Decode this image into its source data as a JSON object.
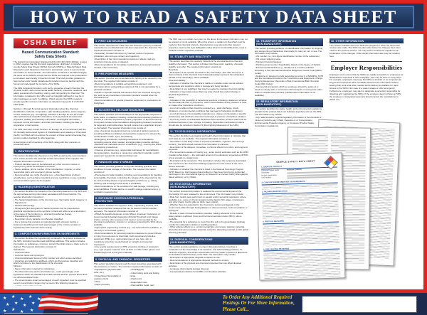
{
  "poster": {
    "title": "HOW TO READ A SAFETY DATA SHEET"
  },
  "colors": {
    "accent_red": "#e0241f",
    "banner_navy": "#22365c",
    "section_navy": "#1b3055",
    "footer_navy": "#1d2c4e",
    "footer_yellow": "#f3d017"
  },
  "osha_brief": {
    "label": "OSHA BRIEF",
    "subtitle": "Hazard Communication Standard:\nSafety Data Sheets",
    "intro": [
      "The Hazard Communication Standard (HCS) (29 CFR 1910.1200(g)), revised in 2012, requires that the chemical manufacturer, distributor, or importer provide Safety Data Sheets (SDSs) (formerly MSDSs or Material Safety Data Sheets) for each hazardous chemical to downstream users to communicate information on these hazards. The information contained in the SDS is largely the same as the MSDS, except now the SDSs are required to be presented in a consistent user-friendly, 16-section format. This brief provides guidance to help workers who handle hazardous chemicals to become familiar with the format and understand the contents of the SDSs.",
      "The SDS includes information such as the properties of each chemical; the physical, health, and environmental health hazards; protective measures; and safety precautions for handling, storing, and transporting the chemical. The information contained in the SDS must be in English (although it may be in other languages as well). In addition, OSHA requires that SDS preparers provide specific minimum information as detailed in Appendix D of 29 CFR 1910.1200.",
      "Sections 1 through 8 contain general information about the chemical, identification, hazards, composition, safe handling practices, and emergency control measures (e.g., fire fighting). Sections 9 through 11 and 16 contain other technical and scientific information, such as physical and chemical properties, stability and reactivity information, toxicological information, exposure control information, and other information including the date of preparation or last revision.",
      "The SDS must also contain Sections 12 through 15, to be consistent with the UN Globally Harmonized System of Classification and Labeling of Chemicals (GHS), but OSHA will not enforce the content of these sections because they concern matters handled by other agencies.",
      "A description of all 16 sections of the SDS, along with their contents, is presented below:"
    ]
  },
  "sections": [
    {
      "t": "1.  IDENTIFICATION",
      "b": "This section identifies the chemical on the SDS as well as the recommended uses. It also provides the essential contact information of the supplier. The required information consists of:\n• Product identifier used on the label and any other common names or synonyms by which the substance is known.\n• Name, address, phone number of the manufacturer, importer, or other responsible party, and emergency phone number.\n• Recommended use of the chemical (e.g., a brief description of what it actually does, such as flame retardant) and any restrictions on use, including recommendations given by the supplier."
    },
    {
      "t": "2.  HAZARD(S) IDENTIFICATION",
      "b": "This section identifies the hazards of the chemical presented on the SDS and the appropriate warning information associated with those hazards. The required information consists of:\n• The hazard classification of the chemical (e.g., flammable liquid, category 1).\n• Signal word.\n• Hazard statement(s).\n• Pictograms (the pictograms or hazard symbols may be presented as graphical reproductions of the symbols in black and white or as a description of the name of the symbol (e.g., skull and crossbones, flame).\n• Precautionary statement(s).\n• Description of any hazards not otherwise classified.\n• For a mixture that contains an ingredient(s) with unknown toxicity, a statement describing how much (percentage) of the mixture consists of ingredient(s) with unknown acute toxicity."
    },
    {
      "t": "3.  COMPOSITION/INFORMATION ON INGREDIENTS",
      "b": "This section identifies the ingredient(s) contained in the product indicated on the SDS, including impurities and stabilizing additives. This section includes information on substances, mixtures, and all chemicals where a trade secret is claimed. The required information consists of:\nSubstances\n• Chemical name.\n• Common name and synonyms.\n• Chemical Abstracts Service (CAS) number and other unique identifiers.\n• Impurities and stabilizing additives, which are themselves classified and which contribute to the classification of the chemical.\nMixtures\n• Same information required for substances.\n• The chemical name and concentration (i.e., exact percentage) of all ingredients which are classified as health hazards and are present above their cut-off/concentration limits.\n• The concentration (exact percentages) of each ingredient must be specified except concentration ranges may be used in the following situations:\n– A trade secret claim is made,\n– There is batch-to-batch variation, or\n– The SDS is used for a group of substantially similar mixtures.\nChemicals where a trade secret is claimed\n• A statement that the specific chemical identity and/or exact percentage (concentration) of composition has been withheld as a trade secret is required."
    },
    {
      "t": "4.  FIRST AID MEASURES",
      "b": "This section describes the initial care that should be given by untrained responders to an individual who has been exposed to the chemical. The required information consists of:\n• Necessary first-aid instructions by relevant routes of exposure (inhalation, skin and eye contact, and ingestion).\n• Description of the most important symptoms or effects, and any symptoms that are acute or delayed.\n• Recommendations for immediate medical care and special treatment needed, when necessary."
    },
    {
      "t": "5.  FIRE-FIGHTING MEASURES",
      "b": "This section provides recommendations for fighting a fire caused by the chemical. The required information consists of:\n• Recommendations of suitable extinguishing equipment, and information about extinguishing equipment that is not appropriate for a particular situation.\n• Advice on specific hazards that develop from the chemical during the fire, such as any hazardous combustion products created when the chemical burns.\n• Recommendations on special protective equipment or precautions for firefighters."
    },
    {
      "t": "6.  ACCIDENTAL RELEASE MEASURES",
      "b": "This section provides recommendations on the appropriate response to spills, leaks, or releases, including containment and cleanup practices to prevent or minimize exposure to people, properties, or the environment. It may also include recommendations distinguishing between responses for large and small spills where the spill volume has a significant impact on the hazard. The required information may consist of:\n• Use of personal precautions (such as removal of ignition sources or providing sufficient ventilation) and protective equipment to prevent the contamination of skin, eyes, and clothing.\n• Emergency procedures, including instructions for evacuations, consulting experts when needed, and appropriate protective clothing.\n• Methods and materials used for containment (e.g., covering the drains and capping procedures).\n• Cleanup procedures (e.g., appropriate techniques for neutralization, decontamination, cleaning or vacuuming; adsorbent materials; and/or equipment required for containment/clean up)."
    },
    {
      "t": "7.  HANDLING AND STORAGE",
      "b": "This section provides guidance on the safe handling practices and conditions for safe storage of chemicals. The required information consists of:\n• Precautions for safe handling, including recommendations for handling incompatible chemicals, minimizing the release of the chemical into the air, and providing advice on general hygiene practices (e.g., eating, drinking, and smoking in work areas is prohibited).\n• Recommendations on the conditions for safe storage, including any incompatibilities. Provide advice on specific storage requirements (e.g., ventilation requirements)."
    },
    {
      "t": "8.  EXPOSURE CONTROLS/PERSONAL PROTECTION",
      "b": "This section indicates the exposure limits, engineering controls, and personal protective measures that can be used to minimize worker exposure. The required information consists of:\n• OSHA Permissible Exposure Limits (PELs), American Conference of Governmental Industrial Hygienists (ACGIH) Threshold Limit Values (TLVs), and any other exposure limit used or recommended by the chemical manufacturer, importer, or employer preparing the SDS, where available.\n• Appropriate engineering controls (e.g., use local exhaust ventilation, or use only in an enclosed system).\n• Recommendations for personal protective measures to prevent illness or injury from exposure to chemicals, such as personal protective equipment (PPE) (e.g., appropriate types of eye, face, skin or respiratory protection needed based on hazards and potential exposures).\n• Any special requirements for PPE, protective clothing or respirators (e.g., type of glove material, such as PVC or nitrile rubber gloves; and breakthrough time of the glove material)."
    },
    {
      "t": "9.  PHYSICAL AND CHEMICAL PROPERTIES",
      "b": "This section identifies physical and chemical properties associated with the substance or mixture. The minimum required information consists of:"
    },
    {
      "t": "10.  STABILITY AND REACTIVITY",
      "b": "This section describes the reactivity hazards of the chemical and the chemical stability information. This section is broken into three parts: reactivity, chemical stability, and other. The required information consists of:\nReactivity\n• Description of the specific test data for the chemical(s). This data can be for a class or family of the chemical if such data adequately represent the anticipated hazard of the chemical(s), where available.\nChemical stability\n• Indication of whether the chemical is stable or unstable under normal ambient temperature and conditions while in storage and being handled.\n• Description of any stabilizers that may be needed to maintain chemical stability.\n• Indication of any safety issues that may arise should the product change in physical appearance.\nOther\n• Indication of the possibility of hazardous reactions, including a statement whether the chemical will react or polymerize, which could release excess pressure or heat, or create other hazardous conditions.\n• List of all conditions that should be avoided (e.g., static discharge, shock, vibrations, or environmental conditions that may lead to hazardous conditions).\n• List of all classes of incompatible materials (e.g., classes of chemicals or specific substances) with which the chemical could react to produce a hazardous situation.\n• List of any known or anticipated hazardous decomposition products that could be produced because of use, storage, or heating. (Hazardous combustion products should also be included in Section 5 (Fire-Fighting Measures) of the SDS.)"
    },
    {
      "t": "11.  TOXICOLOGICAL INFORMATION",
      "b": "This section identifies toxicological and health effects information or indicates that such data are not available. The required information consists of:\n• Information on the likely routes of exposure (inhalation, ingestion, skin and eye contact). The SDS should indicate if the information is unknown.\n• Description of the delayed, immediate, or chronic effects from short- and long-term exposure.\n• The numerical measures of toxicity (e.g., acute toxicity estimates such as the LD50 (median lethal dose)) — the estimated amount (of a substance) expected to kill 50% of test animals in a single dose.\n• Description of the symptoms. This description includes the symptoms associated with exposure to the chemical including symptoms from the lowest to the most severe exposure.\n• Indication of whether the chemical is listed in the National Toxicology Program (NTP) Report on Carcinogens (latest edition) or has been found to be a potential carcinogen in the International Agency for Research on Cancer (IARC) Monographs (latest editions), or by OSHA."
    },
    {
      "t": "12.  ECOLOGICAL INFORMATION\n(NON-MANDATORY)",
      "b": "This section provides information to evaluate the environmental impact of the chemical(s) if it were released to the environment. The information may include:\n• Data from toxicity tests performed on aquatic and/or terrestrial organisms, where available (e.g., acute or chronic aquatic toxicity data for fish, algae, crustaceans, and other plants; toxicity data on birds, bees, plants).\n• Whether there is a potential for the chemical to persist and degrade in the environment either through biodegradation or other processes, such as oxidation or hydrolysis.\n• Results of tests of bioaccumulation potential, making reference to the octanol-water partition coefficient (Kow) and the bioconcentration factor (BCF), where available.\n• The potential for a substance to move from the soil to the groundwater (indicate results from adsorption studies or leaching studies).\n• Other adverse effects (e.g., environmental fate, ozone layer depletion potential, photochemical ozone creation potential, endocrine disrupting potential, and/or global warming potential)."
    },
    {
      "t": "13.  DISPOSAL CONSIDERATIONS\n(NON-MANDATORY)",
      "b": "This section provides guidance on proper disposal practices, recycling or reclamation of the chemical(s) or its container, and safe handling practices. To minimize exposure, this section should also refer the reader to Section 8 (Exposure Controls/Personal Protection) of the SDS. The information may include:\n• Description of appropriate disposal containers to use.\n• Recommendations of appropriate disposal methods to employ.\n• Description of the physical and chemical properties that may affect disposal activities.\n• Language discouraging sewage disposal.\n• Any special precautions for landfills or incineration activities."
    },
    {
      "t": "14.  TRANSPORT INFORMATION\n(NON-MANDATORY)",
      "b": "This section provides guidance on classification information for shipping and transporting of hazardous chemical(s) by road, air, rail, or sea. The information may include:\n• UN number (i.e., four-figure identification number of the substance).\n• UN proper shipping name.\n• Transport hazard class(es).\n• Packing group number, if applicable, based on the degree of hazard.\n• Environmental hazards (e.g., identify if it is a marine pollutant according to the International Maritime Dangerous Goods Code (IMDG Code)).\n• Guidance on transport in bulk (according to Annex II of MARPOL 73/78 and the International Code for the Construction and Equipment of Ships Carrying Dangerous Chemicals in Bulk (International Bulk Chemical Code) (IBC Code)).\n• Any special precautions which an employee should be aware of or needs to comply with, in connection with transport or conveyance either within or outside their premises (indicate when information is not available)."
    },
    {
      "t": "15.  REGULATORY INFORMATION\n(NON-MANDATORY)",
      "b": "This section identifies the safety, health, and environmental regulations specific for the product that is not indicated anywhere else on the SDS. The information may include:\n• Any national and/or regional regulatory information of the chemical or mixtures (including any OSHA, Department of Transportation, Environmental Protection Agency, or Consumer Product Safety Commission regulations)."
    },
    {
      "t": "16.  OTHER INFORMATION",
      "b": "This section indicates when the SDS was prepared or when the last known revision was made. The SDS may also state where the changes have been made to the previous version. You may wish to contact the supplier for an explanation of the changes. Other useful information also may be included here."
    }
  ],
  "section9_properties": [
    "Appearance (physical state, color, etc.)",
    "Upper/lower flammability or explosive limits",
    "Odor",
    "Vapor pressure",
    "Odor threshold",
    "Vapor density",
    "pH",
    "Relative density",
    "Melting point/freezing point",
    "Solubility(ies)",
    "Initial boiling point and boiling range",
    "Flash point",
    "Evaporation rate",
    "Flammability (solid, gas)",
    "Partition coefficient: n-octanol/water",
    "Auto-ignition temperature",
    "Decomposition temperature",
    "Viscosity"
  ],
  "section9_note": "The SDS may not contain every item on the above list because information may not be relevant or is not available. When this occurs, a notation to that effect must be made for that chemical property. Manufacturers may also add other relevant properties, such as the dust deflagration index (Kst) for combustible dusts, used to evaluate a dust's explosive potential.",
  "employer": {
    "title": "Employer Responsibilities",
    "body": "Employers must ensure that the SDSs are readily accessible to employees for all hazardous chemicals in their workplace. This may be done in many ways. For example, employers may keep the SDSs in a binder or on computers as long as the employees have immediate access to the information without leaving their work area when needed and a back-up is available for rapid access to the SDS in the case of a power outage or other emergency. Furthermore, employers may want to designate a person(s) responsible for obtaining and maintaining the SDSs. If the employer does not have an SDS, the employer or designated person(s) should contact the manufacturer to obtain one."
  },
  "sample_sds": {
    "title": "SAMPLE SAFETY DATA SHEET",
    "field_labels": [
      "Chemical Product Name:",
      "Synonyms:",
      "Product Identification:",
      "CAS Number:"
    ],
    "product_value": "Methanol (CH3OH)",
    "sections": [
      "1.    CHEMICAL PRODUCT",
      "2.    COMPOSITION/INFORMATION ON INGREDIENTS",
      "3.    HAZARDS IDENTIFICATION",
      "4.    FIRST AID MEASURES",
      "5.    FIRE FIGHTING MEASURES"
    ]
  },
  "footer": {
    "call_text": "To Order Any Additional Required\nPostings Or For More Information,\nPlease Call..."
  }
}
